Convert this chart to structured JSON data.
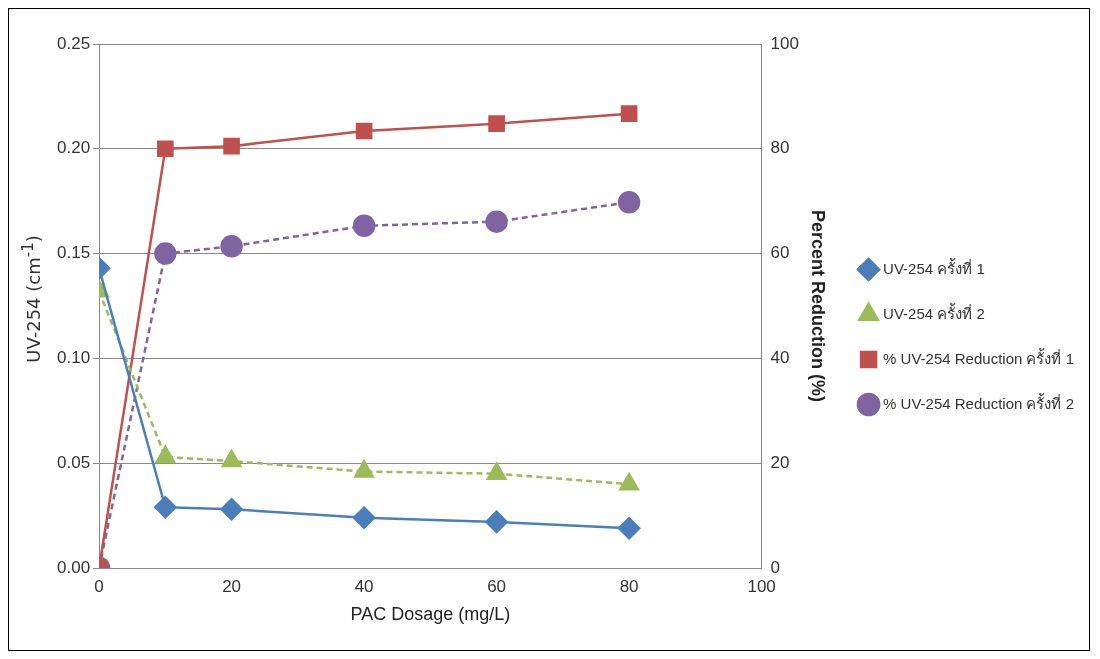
{
  "chart_data": {
    "type": "line",
    "xlabel": "PAC Dosage (mg/L)",
    "ylabel": "UV-254 (cm$^{-1}$)",
    "y2label": "Percent Reduction (%)",
    "xlim": [
      0,
      100
    ],
    "xticks": [
      0,
      20,
      40,
      60,
      80,
      100
    ],
    "ylim": [
      0,
      0.25
    ],
    "yticks": [
      {
        "value": 0,
        "label": "0.00"
      },
      {
        "value": 0.05,
        "label": "0.05"
      },
      {
        "value": 0.1,
        "label": "0.10"
      },
      {
        "value": 0.15,
        "label": "0.15"
      },
      {
        "value": 0.2,
        "label": "0.20"
      },
      {
        "value": 0.25,
        "label": "0.25"
      }
    ],
    "y2lim": [
      0,
      100
    ],
    "y2ticks": [
      0,
      20,
      40,
      60,
      80,
      100
    ],
    "grid": "y",
    "legend": "right",
    "series": [
      {
        "name": "UV-254 ครั้งที่ 1",
        "color": "#4a7ebb",
        "x": [
          0,
          10,
          20,
          40,
          60,
          80
        ],
        "values": [
          0.143,
          0.029,
          0.028,
          0.024,
          0.022,
          0.019
        ],
        "marker": "diamond",
        "line_style": "solid"
      },
      {
        "name": "UV-254 ครั้งที่ 2",
        "color": "#9bbb59",
        "x": [
          0,
          10,
          20,
          40,
          60,
          80
        ],
        "values": [
          0.132,
          0.053,
          0.051,
          0.046,
          0.045,
          0.04
        ],
        "marker": "triangle",
        "line_style": "dashed"
      },
      {
        "name": "% UV-254 Reduction ครั้งที่ 1",
        "color": "#c0504d",
        "x": [
          0,
          10,
          20,
          40,
          60,
          80
        ],
        "values": [
          0,
          80,
          80.5,
          83.4,
          84.8,
          86.7
        ],
        "marker": "square",
        "line_style": "solid",
        "axis": "y2"
      },
      {
        "name": "% UV-254 Reduction ครั้งที่ 2",
        "color": "#8064a2",
        "x": [
          0,
          10,
          20,
          40,
          60,
          80
        ],
        "values": [
          0,
          60,
          61.4,
          65.3,
          66.1,
          69.8
        ],
        "marker": "circle",
        "line_style": "dashed",
        "axis": "y2"
      }
    ]
  }
}
